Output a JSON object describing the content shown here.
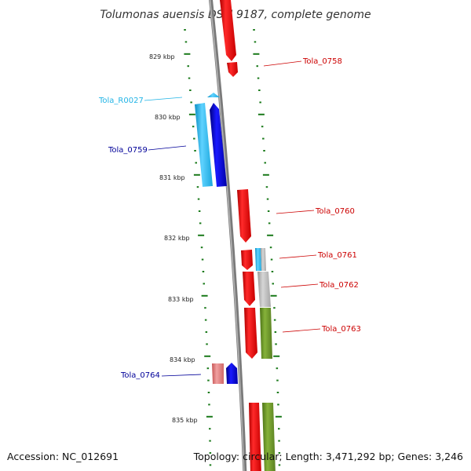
{
  "title": "Tolumonas auensis DSM 9187, complete genome",
  "footer": {
    "accession": "Accession: NC_012691",
    "summary": "Topology: circular; Length: 3,471,292 bp; Genes: 3,246"
  },
  "scale": {
    "ticks": [
      {
        "label": "829 kbp"
      },
      {
        "label": "830 kbp"
      },
      {
        "label": "831 kbp"
      },
      {
        "label": "832 kbp"
      },
      {
        "label": "833 kbp"
      },
      {
        "label": "834 kbp"
      },
      {
        "label": "835 kbp"
      }
    ]
  },
  "genes": [
    {
      "id": "Tola_0758",
      "strand": "+",
      "color": "#e8141c"
    },
    {
      "id": "Tola_R0027",
      "strand": "-",
      "color": "#22b4e6"
    },
    {
      "id": "Tola_0759",
      "strand": "-",
      "color": "#0000cc"
    },
    {
      "id": "Tola_0760",
      "strand": "+",
      "color": "#e8141c"
    },
    {
      "id": "Tola_0761",
      "strand": "+",
      "color": "#e8141c"
    },
    {
      "id": "Tola_0762",
      "strand": "+",
      "color": "#e8141c"
    },
    {
      "id": "Tola_0763",
      "strand": "+",
      "color": "#e8141c"
    },
    {
      "id": "Tola_0764",
      "strand": "-",
      "color": "#0000cc"
    }
  ],
  "colors": {
    "backbone": "#888888",
    "forward_cds": "#e8141c",
    "reverse_cds": "#0000dd",
    "rna": "#22b4e6",
    "cog_green": "#6e9a2a",
    "cog_grey": "#b8b8b8",
    "cog_pink": "#e07878",
    "ticks": "#1a7a1a",
    "forward_label": "#cc0000",
    "reverse_label": "#000099",
    "rna_label": "#22b4e6"
  }
}
